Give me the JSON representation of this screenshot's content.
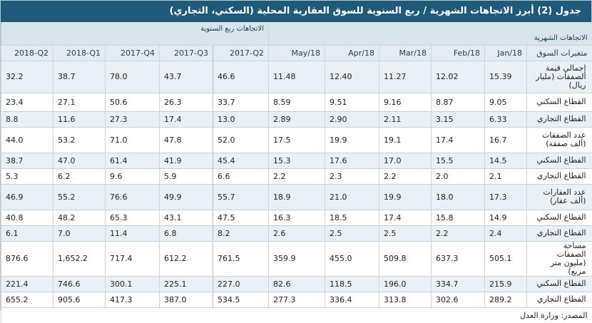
{
  "title": "جدول (2) أبرز الاتجاهات الشهرية / ربع السنوية للسوق العقارية المحلية (السكني، التجاري)",
  "headers": {
    "quarterly_group": "الاتجاهات ربع السنوية",
    "monthly_group": "الاتجاهات الشهرية",
    "variables": "متغيرات السوق"
  },
  "quarter_columns": [
    "2018-Q2",
    "2018-Q1",
    "2017-Q4",
    "2017-Q3",
    "2017-Q2"
  ],
  "month_columns": [
    "May/18",
    "Apr/18",
    "Mar/18",
    "Feb/18",
    "Jan/18"
  ],
  "rows": [
    {
      "label": "إجمالي قيمة الصفقات (مليار ريال)",
      "q": [
        "32.2",
        "38.7",
        "78.0",
        "43.7",
        "46.6"
      ],
      "m": [
        "11.48",
        "12.40",
        "11.27",
        "12.02",
        "15.39"
      ]
    },
    {
      "label": "القطاع السكني",
      "q": [
        "23.4",
        "27.1",
        "50.6",
        "26.3",
        "33.7"
      ],
      "m": [
        "8.59",
        "9.51",
        "9.16",
        "8.87",
        "9.05"
      ]
    },
    {
      "label": "القطاع التجاري",
      "q": [
        "8.8",
        "11.6",
        "27.3",
        "17.4",
        "13.0"
      ],
      "m": [
        "2.89",
        "2.90",
        "2.11",
        "3.15",
        "6.33"
      ]
    },
    {
      "label": "عدد الصفقات (ألف صفقة)",
      "q": [
        "44.0",
        "53.2",
        "71.0",
        "47.8",
        "52.0"
      ],
      "m": [
        "17.5",
        "19.9",
        "19.1",
        "17.4",
        "16.7"
      ]
    },
    {
      "label": "القطاع السكني",
      "q": [
        "38.7",
        "47.0",
        "61.4",
        "41.9",
        "45.4"
      ],
      "m": [
        "15.3",
        "17.6",
        "17.0",
        "15.5",
        "14.5"
      ]
    },
    {
      "label": "القطاع التجاري",
      "q": [
        "5.3",
        "6.2",
        "9.6",
        "5.9",
        "6.6"
      ],
      "m": [
        "2.2",
        "2.3",
        "2.2",
        "2.0",
        "2.1"
      ]
    },
    {
      "label": "عدد العقارات (ألف عقار)",
      "q": [
        "46.9",
        "55.2",
        "76.6",
        "49.9",
        "55.7"
      ],
      "m": [
        "18.9",
        "21.0",
        "19.9",
        "18.0",
        "17.3"
      ]
    },
    {
      "label": "القطاع السكني",
      "q": [
        "40.8",
        "48.2",
        "65.3",
        "43.1",
        "47.5"
      ],
      "m": [
        "16.3",
        "18.5",
        "17.4",
        "15.8",
        "14.9"
      ]
    },
    {
      "label": "القطاع التجاري",
      "q": [
        "6.1",
        "7.0",
        "11.4",
        "6.8",
        "8.2"
      ],
      "m": [
        "2.6",
        "2.5",
        "2.5",
        "2.2",
        "2.4"
      ]
    },
    {
      "label": "مساحة الصفقات (مليون متر مربع)",
      "q": [
        "876.6",
        "1,652.2",
        "717.4",
        "612.2",
        "761.5"
      ],
      "m": [
        "359.9",
        "455.0",
        "509.8",
        "637.3",
        "505.1"
      ]
    },
    {
      "label": "القطاع السكني",
      "q": [
        "221.4",
        "746.6",
        "300.1",
        "225.1",
        "227.0"
      ],
      "m": [
        "82.6",
        "118.5",
        "196.0",
        "334.7",
        "215.9"
      ]
    },
    {
      "label": "القطاع التجاري",
      "q": [
        "655.2",
        "905.6",
        "417.3",
        "387.0",
        "534.5"
      ],
      "m": [
        "277.3",
        "336.4",
        "313.8",
        "302.6",
        "289.2"
      ]
    }
  ],
  "source": "المصدر: وزارة العدل"
}
